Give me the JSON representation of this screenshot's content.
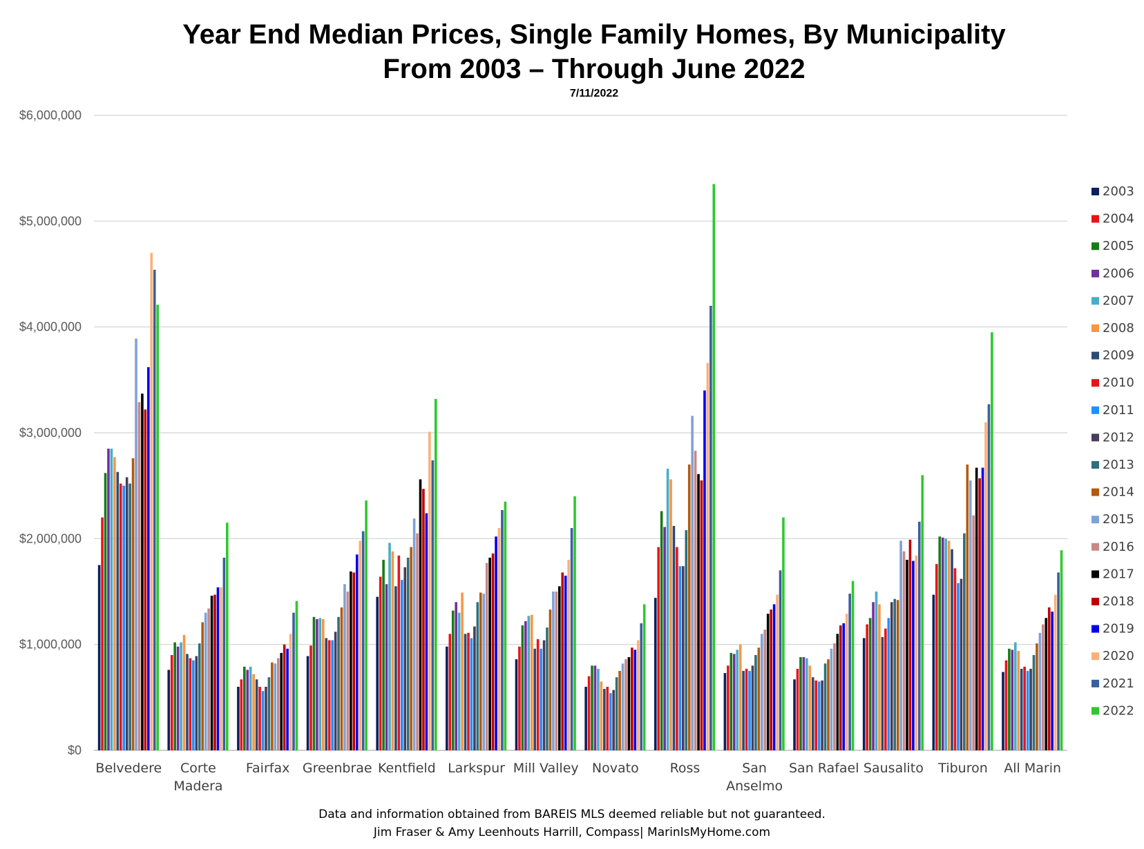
{
  "title_line1": "Year End Median Prices, Single Family Homes, By Municipality",
  "title_line2": "From 2003 – Through June 2022",
  "subtitle": "7/11/2022",
  "footer_line1": "Data and information obtained from BAREIS MLS deemed reliable but not guaranteed.",
  "footer_line2": "Jim Fraser & Amy Leenhouts Harrill, Compass| MarinIsMyHome.com",
  "chart_data": {
    "type": "bar",
    "title": "Year End Median Prices, Single Family Homes, By Municipality",
    "subtitle": "From 2003 – Through June 2022",
    "xlabel": "",
    "ylabel": "",
    "ylim": [
      0,
      6000000
    ],
    "yticks": [
      0,
      1000000,
      2000000,
      3000000,
      4000000,
      5000000,
      6000000
    ],
    "ytick_labels": [
      "$0",
      "$1,000,000",
      "$2,000,000",
      "$3,000,000",
      "$4,000,000",
      "$5,000,000",
      "$6,000,000"
    ],
    "grid": true,
    "legend_position": "right",
    "categories": [
      [
        "Belvedere"
      ],
      [
        "Corte",
        "Madera"
      ],
      [
        "Fairfax"
      ],
      [
        "Greenbrae"
      ],
      [
        "Kentfield"
      ],
      [
        "Larkspur"
      ],
      [
        "Mill Valley"
      ],
      [
        "Novato"
      ],
      [
        "Ross"
      ],
      [
        "San",
        "Anselmo"
      ],
      [
        "San Rafael"
      ],
      [
        "Sausalito"
      ],
      [
        "Tiburon"
      ],
      [
        "All Marin"
      ]
    ],
    "series": [
      {
        "name": "2003",
        "color": "#0d1f5c",
        "values": [
          1750000,
          760000,
          600000,
          890000,
          1450000,
          980000,
          860000,
          600000,
          1440000,
          730000,
          670000,
          1060000,
          1470000,
          740000
        ]
      },
      {
        "name": "2004",
        "color": "#e8141b",
        "values": [
          2200000,
          900000,
          670000,
          990000,
          1640000,
          1100000,
          980000,
          700000,
          1920000,
          800000,
          770000,
          1190000,
          1760000,
          850000
        ]
      },
      {
        "name": "2005",
        "color": "#1a7a1a",
        "values": [
          2620000,
          1020000,
          790000,
          1260000,
          1800000,
          1320000,
          1180000,
          800000,
          2260000,
          920000,
          880000,
          1250000,
          2020000,
          960000
        ]
      },
      {
        "name": "2006",
        "color": "#7030a0",
        "values": [
          2850000,
          980000,
          760000,
          1240000,
          1570000,
          1400000,
          1220000,
          800000,
          2110000,
          910000,
          880000,
          1400000,
          2010000,
          950000
        ]
      },
      {
        "name": "2007",
        "color": "#4bacc6",
        "values": [
          2850000,
          1020000,
          790000,
          1250000,
          1960000,
          1300000,
          1270000,
          770000,
          2660000,
          950000,
          870000,
          1500000,
          2000000,
          1020000
        ]
      },
      {
        "name": "2008",
        "color": "#f79646",
        "values": [
          2770000,
          1090000,
          720000,
          1240000,
          1880000,
          1490000,
          1280000,
          650000,
          2560000,
          1000000,
          800000,
          1380000,
          1980000,
          940000
        ]
      },
      {
        "name": "2009",
        "color": "#2c4a75",
        "values": [
          2630000,
          910000,
          670000,
          1060000,
          1550000,
          1100000,
          960000,
          580000,
          2120000,
          750000,
          690000,
          1070000,
          1900000,
          770000
        ]
      },
      {
        "name": "2010",
        "color": "#e8141b",
        "values": [
          2520000,
          870000,
          600000,
          1040000,
          1840000,
          1110000,
          1050000,
          600000,
          1920000,
          770000,
          660000,
          1150000,
          1720000,
          790000
        ]
      },
      {
        "name": "2011",
        "color": "#1e90ff",
        "values": [
          2500000,
          850000,
          560000,
          1040000,
          1610000,
          1060000,
          960000,
          540000,
          1740000,
          750000,
          650000,
          1250000,
          1580000,
          750000
        ]
      },
      {
        "name": "2012",
        "color": "#4a3c5c",
        "values": [
          2580000,
          890000,
          600000,
          1120000,
          1730000,
          1170000,
          1040000,
          570000,
          1740000,
          800000,
          660000,
          1400000,
          1620000,
          770000
        ]
      },
      {
        "name": "2013",
        "color": "#2f6f7a",
        "values": [
          2520000,
          1010000,
          690000,
          1260000,
          1820000,
          1400000,
          1160000,
          690000,
          2080000,
          900000,
          820000,
          1430000,
          2050000,
          900000
        ]
      },
      {
        "name": "2014",
        "color": "#b35a0f",
        "values": [
          2760000,
          1210000,
          830000,
          1350000,
          1920000,
          1490000,
          1330000,
          750000,
          2700000,
          970000,
          860000,
          1420000,
          2700000,
          1010000
        ]
      },
      {
        "name": "2015",
        "color": "#7ea2d6",
        "values": [
          3890000,
          1300000,
          820000,
          1570000,
          2190000,
          1480000,
          1500000,
          820000,
          3160000,
          1100000,
          960000,
          1980000,
          2550000,
          1110000
        ]
      },
      {
        "name": "2016",
        "color": "#c98686",
        "values": [
          3290000,
          1340000,
          870000,
          1500000,
          2050000,
          1770000,
          1500000,
          860000,
          2830000,
          1140000,
          1010000,
          1880000,
          2220000,
          1190000
        ]
      },
      {
        "name": "2017",
        "color": "#000000",
        "values": [
          3370000,
          1460000,
          920000,
          1690000,
          2560000,
          1820000,
          1550000,
          880000,
          2610000,
          1290000,
          1100000,
          1800000,
          2670000,
          1250000
        ]
      },
      {
        "name": "2018",
        "color": "#c00000",
        "values": [
          3220000,
          1470000,
          1000000,
          1680000,
          2470000,
          1860000,
          1680000,
          970000,
          2550000,
          1330000,
          1180000,
          1990000,
          2570000,
          1350000
        ]
      },
      {
        "name": "2019",
        "color": "#0000ee",
        "values": [
          3620000,
          1540000,
          960000,
          1850000,
          2240000,
          2020000,
          1650000,
          950000,
          3400000,
          1380000,
          1200000,
          1790000,
          2670000,
          1310000
        ]
      },
      {
        "name": "2020",
        "color": "#fab07a",
        "values": [
          4700000,
          1540000,
          1100000,
          1980000,
          3010000,
          2100000,
          1800000,
          1040000,
          3660000,
          1470000,
          1290000,
          1840000,
          3100000,
          1470000
        ]
      },
      {
        "name": "2021",
        "color": "#3a5f9c",
        "values": [
          4540000,
          1820000,
          1300000,
          2070000,
          2740000,
          2270000,
          2100000,
          1200000,
          4200000,
          1700000,
          1480000,
          2160000,
          3270000,
          1680000
        ]
      },
      {
        "name": "2022",
        "color": "#2ec82e",
        "values": [
          4210000,
          2150000,
          1410000,
          2360000,
          3320000,
          2350000,
          2400000,
          1380000,
          5350000,
          2200000,
          1600000,
          2600000,
          3950000,
          1890000
        ]
      }
    ]
  }
}
